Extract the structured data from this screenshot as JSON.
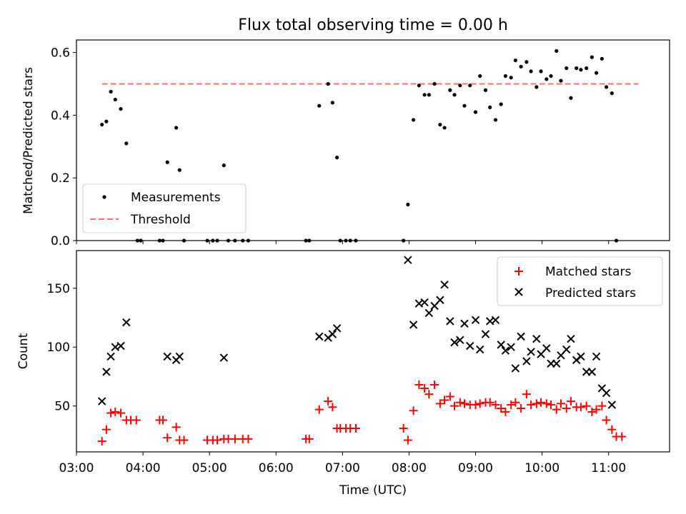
{
  "chart_data": [
    {
      "type": "scatter",
      "title": "Flux total observing time = 0.00 h",
      "xlabel": "",
      "ylabel": "Matched/Predicted stars",
      "xlim": [
        "03:00",
        "11:55"
      ],
      "ylim": [
        0,
        0.64
      ],
      "yticks": [
        0.0,
        0.2,
        0.4,
        0.6
      ],
      "ytick_labels": [
        "0.0",
        "0.2",
        "0.4",
        "0.6"
      ],
      "xticks_show_labels": false,
      "legend": {
        "placement": "lower-left",
        "entries": [
          "Measurements",
          "Threshold"
        ]
      },
      "threshold": {
        "name": "Threshold",
        "value": 0.5,
        "x_start": "03:23",
        "x_end": "11:27",
        "color": "#ff7070",
        "style": "dashed"
      },
      "series": [
        {
          "name": "Measurements",
          "marker": "dot",
          "color": "#000000",
          "points": [
            [
              "03:23",
              0.37
            ],
            [
              "03:27",
              0.38
            ],
            [
              "03:31",
              0.475
            ],
            [
              "03:35",
              0.45
            ],
            [
              "03:40",
              0.42
            ],
            [
              "03:45",
              0.31
            ],
            [
              "03:55",
              0.0
            ],
            [
              "03:58",
              0.0
            ],
            [
              "04:15",
              0.0
            ],
            [
              "04:18",
              0.0
            ],
            [
              "04:22",
              0.25
            ],
            [
              "04:30",
              0.36
            ],
            [
              "04:33",
              0.225
            ],
            [
              "04:37",
              0.0
            ],
            [
              "04:58",
              0.0
            ],
            [
              "05:03",
              0.0
            ],
            [
              "05:07",
              0.0
            ],
            [
              "05:13",
              0.24
            ],
            [
              "05:17",
              0.0
            ],
            [
              "05:23",
              0.0
            ],
            [
              "05:30",
              0.0
            ],
            [
              "05:35",
              0.0
            ],
            [
              "06:27",
              0.0
            ],
            [
              "06:30",
              0.0
            ],
            [
              "06:39",
              0.43
            ],
            [
              "06:47",
              0.5
            ],
            [
              "06:51",
              0.44
            ],
            [
              "06:55",
              0.265
            ],
            [
              "06:58",
              0.0
            ],
            [
              "07:03",
              0.0
            ],
            [
              "07:07",
              0.0
            ],
            [
              "07:12",
              0.0
            ],
            [
              "07:55",
              0.0
            ],
            [
              "07:59",
              0.115
            ],
            [
              "08:04",
              0.385
            ],
            [
              "08:09",
              0.495
            ],
            [
              "08:14",
              0.465
            ],
            [
              "08:18",
              0.465
            ],
            [
              "08:23",
              0.5
            ],
            [
              "08:28",
              0.37
            ],
            [
              "08:32",
              0.36
            ],
            [
              "08:37",
              0.48
            ],
            [
              "08:41",
              0.465
            ],
            [
              "08:46",
              0.495
            ],
            [
              "08:50",
              0.43
            ],
            [
              "08:55",
              0.495
            ],
            [
              "09:00",
              0.41
            ],
            [
              "09:04",
              0.525
            ],
            [
              "09:09",
              0.48
            ],
            [
              "09:13",
              0.425
            ],
            [
              "09:18",
              0.385
            ],
            [
              "09:23",
              0.435
            ],
            [
              "09:27",
              0.525
            ],
            [
              "09:32",
              0.52
            ],
            [
              "09:36",
              0.575
            ],
            [
              "09:41",
              0.555
            ],
            [
              "09:46",
              0.57
            ],
            [
              "09:50",
              0.54
            ],
            [
              "09:55",
              0.49
            ],
            [
              "09:59",
              0.54
            ],
            [
              "10:04",
              0.515
            ],
            [
              "10:08",
              0.525
            ],
            [
              "10:13",
              0.605
            ],
            [
              "10:17",
              0.51
            ],
            [
              "10:22",
              0.55
            ],
            [
              "10:26",
              0.455
            ],
            [
              "10:31",
              0.55
            ],
            [
              "10:35",
              0.545
            ],
            [
              "10:40",
              0.55
            ],
            [
              "10:45",
              0.585
            ],
            [
              "10:49",
              0.535
            ],
            [
              "10:54",
              0.58
            ],
            [
              "10:58",
              0.49
            ],
            [
              "11:03",
              0.47
            ],
            [
              "11:07",
              0.0
            ]
          ]
        }
      ]
    },
    {
      "type": "scatter",
      "title": "",
      "xlabel": "Time (UTC)",
      "ylabel": "Count",
      "xlim": [
        "03:00",
        "11:55"
      ],
      "ylim": [
        11,
        182
      ],
      "yticks": [
        50,
        100,
        150
      ],
      "ytick_labels": [
        "50",
        "100",
        "150"
      ],
      "xticks": [
        "03:00",
        "04:00",
        "05:00",
        "06:00",
        "07:00",
        "08:00",
        "09:00",
        "10:00",
        "11:00"
      ],
      "xtick_labels": [
        "03:00",
        "04:00",
        "05:00",
        "06:00",
        "07:00",
        "08:00",
        "09:00",
        "10:00",
        "11:00"
      ],
      "legend": {
        "placement": "upper-right",
        "entries": [
          "Matched stars",
          "Predicted stars"
        ]
      },
      "series": [
        {
          "name": "Matched stars",
          "marker": "plus",
          "color": "#ff0000",
          "points": [
            [
              "03:23",
              20
            ],
            [
              "03:27",
              30
            ],
            [
              "03:31",
              44
            ],
            [
              "03:35",
              45
            ],
            [
              "03:40",
              44
            ],
            [
              "03:45",
              38
            ],
            [
              "03:49",
              38
            ],
            [
              "03:54",
              38
            ],
            [
              "04:15",
              38
            ],
            [
              "04:18",
              38
            ],
            [
              "04:22",
              23
            ],
            [
              "04:30",
              32
            ],
            [
              "04:33",
              21
            ],
            [
              "04:37",
              21
            ],
            [
              "04:58",
              21
            ],
            [
              "05:03",
              21
            ],
            [
              "05:07",
              21
            ],
            [
              "05:13",
              22
            ],
            [
              "05:17",
              22
            ],
            [
              "05:23",
              22
            ],
            [
              "05:30",
              22
            ],
            [
              "05:35",
              22
            ],
            [
              "06:27",
              22
            ],
            [
              "06:30",
              22
            ],
            [
              "06:39",
              47
            ],
            [
              "06:47",
              54
            ],
            [
              "06:51",
              49
            ],
            [
              "06:55",
              31
            ],
            [
              "06:58",
              31
            ],
            [
              "07:03",
              31
            ],
            [
              "07:07",
              31
            ],
            [
              "07:12",
              31
            ],
            [
              "07:55",
              31
            ],
            [
              "07:59",
              21
            ],
            [
              "08:04",
              46
            ],
            [
              "08:09",
              68
            ],
            [
              "08:14",
              65
            ],
            [
              "08:18",
              60
            ],
            [
              "08:23",
              68
            ],
            [
              "08:28",
              52
            ],
            [
              "08:32",
              55
            ],
            [
              "08:37",
              58
            ],
            [
              "08:41",
              50
            ],
            [
              "08:46",
              53
            ],
            [
              "08:50",
              52
            ],
            [
              "08:55",
              51
            ],
            [
              "09:00",
              51
            ],
            [
              "09:04",
              52
            ],
            [
              "09:09",
              53
            ],
            [
              "09:13",
              53
            ],
            [
              "09:18",
              51
            ],
            [
              "09:23",
              48
            ],
            [
              "09:27",
              45
            ],
            [
              "09:32",
              51
            ],
            [
              "09:36",
              53
            ],
            [
              "09:41",
              48
            ],
            [
              "09:46",
              60
            ],
            [
              "09:50",
              51
            ],
            [
              "09:55",
              52
            ],
            [
              "09:59",
              53
            ],
            [
              "10:04",
              52
            ],
            [
              "10:08",
              51
            ],
            [
              "10:13",
              47
            ],
            [
              "10:17",
              52
            ],
            [
              "10:22",
              48
            ],
            [
              "10:26",
              54
            ],
            [
              "10:31",
              49
            ],
            [
              "10:35",
              49
            ],
            [
              "10:40",
              50
            ],
            [
              "10:45",
              45
            ],
            [
              "10:49",
              47
            ],
            [
              "10:54",
              50
            ],
            [
              "10:58",
              38
            ],
            [
              "11:03",
              30
            ],
            [
              "11:07",
              24
            ],
            [
              "11:12",
              24
            ]
          ]
        },
        {
          "name": "Predicted stars",
          "marker": "x",
          "color": "#000000",
          "points": [
            [
              "03:23",
              54
            ],
            [
              "03:27",
              79
            ],
            [
              "03:31",
              92
            ],
            [
              "03:35",
              100
            ],
            [
              "03:40",
              101
            ],
            [
              "03:45",
              121
            ],
            [
              "04:22",
              92
            ],
            [
              "04:30",
              89
            ],
            [
              "04:33",
              92
            ],
            [
              "05:13",
              91
            ],
            [
              "06:39",
              109
            ],
            [
              "06:47",
              108
            ],
            [
              "06:51",
              111
            ],
            [
              "06:55",
              116
            ],
            [
              "07:59",
              174
            ],
            [
              "08:04",
              119
            ],
            [
              "08:09",
              137
            ],
            [
              "08:14",
              138
            ],
            [
              "08:18",
              129
            ],
            [
              "08:23",
              135
            ],
            [
              "08:28",
              140
            ],
            [
              "08:32",
              153
            ],
            [
              "08:37",
              122
            ],
            [
              "08:41",
              104
            ],
            [
              "08:46",
              106
            ],
            [
              "08:50",
              120
            ],
            [
              "08:55",
              101
            ],
            [
              "09:00",
              123
            ],
            [
              "09:04",
              98
            ],
            [
              "09:09",
              111
            ],
            [
              "09:13",
              122
            ],
            [
              "09:18",
              123
            ],
            [
              "09:23",
              102
            ],
            [
              "09:27",
              97
            ],
            [
              "09:32",
              100
            ],
            [
              "09:36",
              82
            ],
            [
              "09:41",
              109
            ],
            [
              "09:46",
              88
            ],
            [
              "09:50",
              96
            ],
            [
              "09:55",
              107
            ],
            [
              "09:59",
              94
            ],
            [
              "10:04",
              99
            ],
            [
              "10:08",
              86
            ],
            [
              "10:13",
              86
            ],
            [
              "10:17",
              93
            ],
            [
              "10:22",
              98
            ],
            [
              "10:26",
              107
            ],
            [
              "10:31",
              89
            ],
            [
              "10:35",
              92
            ],
            [
              "10:40",
              79
            ],
            [
              "10:45",
              79
            ],
            [
              "10:49",
              92
            ],
            [
              "10:54",
              65
            ],
            [
              "10:58",
              61
            ],
            [
              "11:03",
              51
            ]
          ]
        }
      ]
    }
  ]
}
